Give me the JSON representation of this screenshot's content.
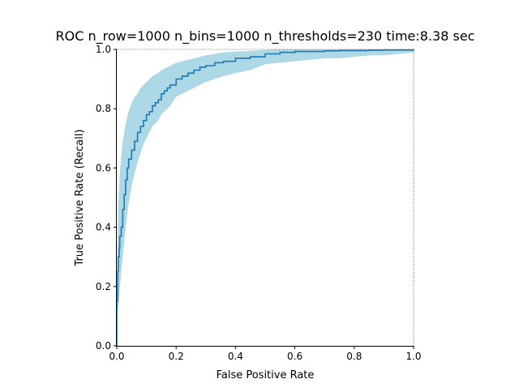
{
  "chart_data": {
    "type": "line",
    "title": "ROC n_row=1000 n_bins=1000 n_thresholds=230 time:8.38 sec",
    "xlabel": "False Positive Rate",
    "ylabel": "True Positive Rate (Recall)",
    "xlim": [
      0.0,
      1.0
    ],
    "ylim": [
      0.0,
      1.0
    ],
    "xticks": [
      "0.0",
      "0.2",
      "0.4",
      "0.6",
      "0.8",
      "1.0"
    ],
    "yticks": [
      "0.0",
      "0.2",
      "0.4",
      "0.6",
      "0.8",
      "1.0"
    ],
    "grid": false,
    "legend": "none",
    "colors": {
      "line": "#1f77b4",
      "band": "#add8e6"
    },
    "series": [
      {
        "x": [
          0.0,
          0.0,
          0.003,
          0.005,
          0.008,
          0.01,
          0.015,
          0.02,
          0.025,
          0.03,
          0.035,
          0.04,
          0.05,
          0.06,
          0.07,
          0.08,
          0.09,
          0.1,
          0.11,
          0.12,
          0.13,
          0.14,
          0.15,
          0.16,
          0.17,
          0.18,
          0.2,
          0.22,
          0.24,
          0.26,
          0.28,
          0.3,
          0.33,
          0.36,
          0.4,
          0.45,
          0.5,
          0.55,
          0.6,
          0.65,
          0.7,
          0.75,
          0.8,
          0.85,
          0.9,
          0.95,
          1.0
        ],
        "y": [
          0.0,
          0.15,
          0.25,
          0.3,
          0.33,
          0.37,
          0.4,
          0.46,
          0.51,
          0.56,
          0.6,
          0.63,
          0.66,
          0.69,
          0.72,
          0.74,
          0.76,
          0.78,
          0.79,
          0.81,
          0.82,
          0.83,
          0.85,
          0.86,
          0.87,
          0.88,
          0.9,
          0.91,
          0.92,
          0.93,
          0.94,
          0.945,
          0.955,
          0.96,
          0.97,
          0.975,
          0.985,
          0.99,
          0.993,
          0.993,
          0.995,
          0.996,
          0.996,
          0.997,
          0.998,
          0.998,
          1.0
        ],
        "band_lower": [
          0.0,
          0.1,
          0.11,
          0.13,
          0.16,
          0.19,
          0.25,
          0.3,
          0.35,
          0.4,
          0.44,
          0.48,
          0.54,
          0.58,
          0.62,
          0.65,
          0.68,
          0.7,
          0.72,
          0.74,
          0.75,
          0.76,
          0.78,
          0.79,
          0.8,
          0.81,
          0.84,
          0.85,
          0.86,
          0.87,
          0.88,
          0.89,
          0.9,
          0.91,
          0.92,
          0.93,
          0.95,
          0.955,
          0.96,
          0.965,
          0.97,
          0.97,
          0.975,
          0.98,
          0.98,
          0.985,
          0.99
        ],
        "band_upper": [
          0.0,
          0.19,
          0.4,
          0.48,
          0.53,
          0.58,
          0.64,
          0.69,
          0.72,
          0.75,
          0.77,
          0.79,
          0.82,
          0.84,
          0.85,
          0.87,
          0.88,
          0.89,
          0.9,
          0.91,
          0.915,
          0.92,
          0.93,
          0.935,
          0.94,
          0.945,
          0.955,
          0.96,
          0.965,
          0.97,
          0.975,
          0.98,
          0.985,
          0.99,
          0.993,
          0.995,
          0.998,
          1.0,
          1.0,
          1.0,
          1.0,
          1.0,
          1.0,
          1.0,
          1.0,
          1.0,
          1.0
        ]
      }
    ]
  }
}
